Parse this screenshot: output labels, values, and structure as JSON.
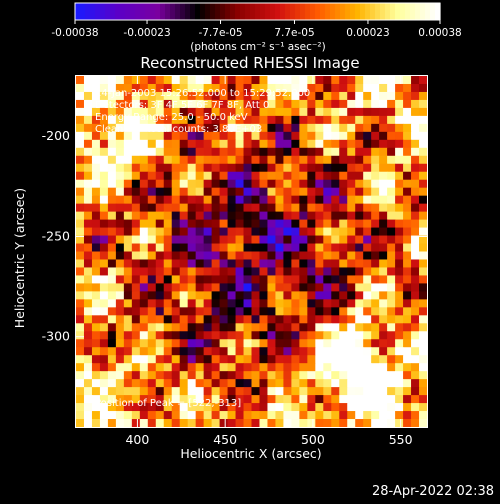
{
  "timestamp": "28-Apr-2022 02:38",
  "chart_data": {
    "type": "heatmap",
    "title": "Reconstructed RHESSI Image",
    "xlabel": "Heliocentric X (arcsec)",
    "ylabel": "Heliocentric Y (arcsec)",
    "xlim": [
      365,
      565
    ],
    "ylim": [
      -345,
      -170
    ],
    "x_ticks": [
      400,
      450,
      500,
      550
    ],
    "y_ticks": [
      -200,
      -250,
      -300
    ],
    "colorbar": {
      "ticks": [
        "-0.00038",
        "-0.00023",
        "-7.7e-05",
        "7.7e-05",
        "0.00023",
        "0.00038"
      ],
      "tick_values": [
        -0.00038,
        -0.00023,
        -7.7e-05,
        7.7e-05,
        0.00023,
        0.00038
      ],
      "range": [
        -0.00038,
        0.00038
      ],
      "units_text": "(photons cm⁻² s⁻¹ asec⁻²)",
      "colors": [
        "#1a1aff",
        "#5a00c8",
        "#7a00a0",
        "#000000",
        "#8a0000",
        "#d01010",
        "#ff5a00",
        "#ffb400",
        "#ffff9c",
        "#ffffff"
      ]
    },
    "annotations": {
      "time_range": "14-Jan-2003 15:26:52.000 to 15:29:52.000",
      "detectors": "Detectors: 3F 4F 5F 6F 7F 8F, Att 0",
      "energy": "Energy Range: 25.0 - 50.0 keV",
      "clean": "Clean",
      "total_counts": "Total counts: 3.80E+03",
      "peak": "Position of Peak = [522,-313]"
    },
    "peak": [
      522,
      -313
    ],
    "grid": false,
    "legend": "colorbar top"
  }
}
